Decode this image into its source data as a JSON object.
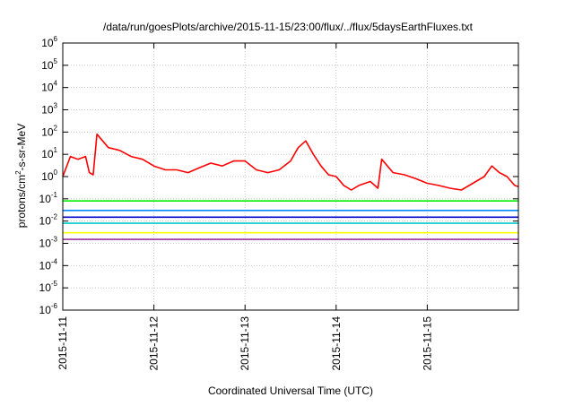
{
  "chart_data": {
    "type": "line",
    "title": "/data/run/goesPlots/archive/2015-11-15/23:00/flux/../flux/5daysEarthFluxes.txt",
    "xlabel": "Coordinated Universal Time (UTC)",
    "ylabel_prefix": "protons/cm",
    "ylabel_sup": "2",
    "ylabel_suffix": "-s-sr-MeV",
    "y_scale": "log",
    "ylim": [
      1e-06,
      1000000.0
    ],
    "y_ticks": [
      {
        "base": "10",
        "exp": "-6",
        "value": 1e-06
      },
      {
        "base": "10",
        "exp": "-5",
        "value": 1e-05
      },
      {
        "base": "10",
        "exp": "-4",
        "value": 0.0001
      },
      {
        "base": "10",
        "exp": "-3",
        "value": 0.001
      },
      {
        "base": "10",
        "exp": "-2",
        "value": 0.01
      },
      {
        "base": "10",
        "exp": "-1",
        "value": 0.1
      },
      {
        "base": "10",
        "exp": "0",
        "value": 1
      },
      {
        "base": "10",
        "exp": "1",
        "value": 10
      },
      {
        "base": "10",
        "exp": "2",
        "value": 100
      },
      {
        "base": "10",
        "exp": "3",
        "value": 1000
      },
      {
        "base": "10",
        "exp": "4",
        "value": 10000
      },
      {
        "base": "10",
        "exp": "5",
        "value": 100000
      },
      {
        "base": "10",
        "exp": "6",
        "value": 1000000
      }
    ],
    "x_range": [
      "2015-11-11",
      "2015-11-16"
    ],
    "x_ticks": [
      "2015-11-11",
      "2015-11-12",
      "2015-11-13",
      "2015-11-14",
      "2015-11-15"
    ],
    "grid": true,
    "legend": "none",
    "series": [
      {
        "color": "#ff0000",
        "x": [
          "2015-11-11T00:00",
          "2015-11-11T02:00",
          "2015-11-11T04:00",
          "2015-11-11T06:00",
          "2015-11-11T07:00",
          "2015-11-11T08:00",
          "2015-11-11T09:00",
          "2015-11-11T12:00",
          "2015-11-11T15:00",
          "2015-11-11T18:00",
          "2015-11-11T21:00",
          "2015-11-12T00:00",
          "2015-11-12T03:00",
          "2015-11-12T06:00",
          "2015-11-12T09:00",
          "2015-11-12T12:00",
          "2015-11-12T15:00",
          "2015-11-12T18:00",
          "2015-11-12T21:00",
          "2015-11-13T00:00",
          "2015-11-13T03:00",
          "2015-11-13T06:00",
          "2015-11-13T09:00",
          "2015-11-13T12:00",
          "2015-11-13T14:00",
          "2015-11-13T16:00",
          "2015-11-13T18:00",
          "2015-11-13T20:00",
          "2015-11-13T22:00",
          "2015-11-14T00:00",
          "2015-11-14T02:00",
          "2015-11-14T04:00",
          "2015-11-14T06:00",
          "2015-11-14T09:00",
          "2015-11-14T11:00",
          "2015-11-14T12:00",
          "2015-11-14T15:00",
          "2015-11-14T18:00",
          "2015-11-14T21:00",
          "2015-11-15T00:00",
          "2015-11-15T03:00",
          "2015-11-15T06:00",
          "2015-11-15T09:00",
          "2015-11-15T12:00",
          "2015-11-15T15:00",
          "2015-11-15T17:00",
          "2015-11-15T19:00",
          "2015-11-15T21:00",
          "2015-11-15T23:00",
          "2015-11-16T00:00"
        ],
        "values": [
          1,
          8,
          6,
          8,
          1.5,
          1.2,
          80,
          20,
          15,
          8,
          6,
          3,
          2,
          2,
          1.5,
          2.5,
          4,
          3,
          5,
          5,
          2,
          1.5,
          2,
          5,
          20,
          40,
          10,
          3,
          1.2,
          1,
          0.4,
          0.25,
          0.4,
          0.6,
          0.3,
          6,
          1.5,
          1.2,
          0.8,
          0.5,
          0.4,
          0.3,
          0.25,
          0.5,
          1,
          3,
          1.5,
          1,
          0.4,
          0.35
        ]
      },
      {
        "color": "#00ee00",
        "x": [
          "2015-11-11T00:00",
          "2015-11-16T00:00"
        ],
        "values": [
          0.08,
          0.08
        ]
      },
      {
        "color": "#0088ff",
        "x": [
          "2015-11-11T00:00",
          "2015-11-16T00:00"
        ],
        "values": [
          0.03,
          0.03
        ]
      },
      {
        "color": "#0000cc",
        "x": [
          "2015-11-11T00:00",
          "2015-11-16T00:00"
        ],
        "values": [
          0.015,
          0.015
        ]
      },
      {
        "color": "#00cccc",
        "x": [
          "2015-11-11T00:00",
          "2015-11-16T00:00"
        ],
        "values": [
          0.008,
          0.008
        ]
      },
      {
        "color": "#ffff00",
        "x": [
          "2015-11-11T00:00",
          "2015-11-16T00:00"
        ],
        "values": [
          0.003,
          0.003
        ]
      },
      {
        "color": "#993399",
        "x": [
          "2015-11-11T00:00",
          "2015-11-16T00:00"
        ],
        "values": [
          0.0015,
          0.0015
        ]
      }
    ]
  }
}
